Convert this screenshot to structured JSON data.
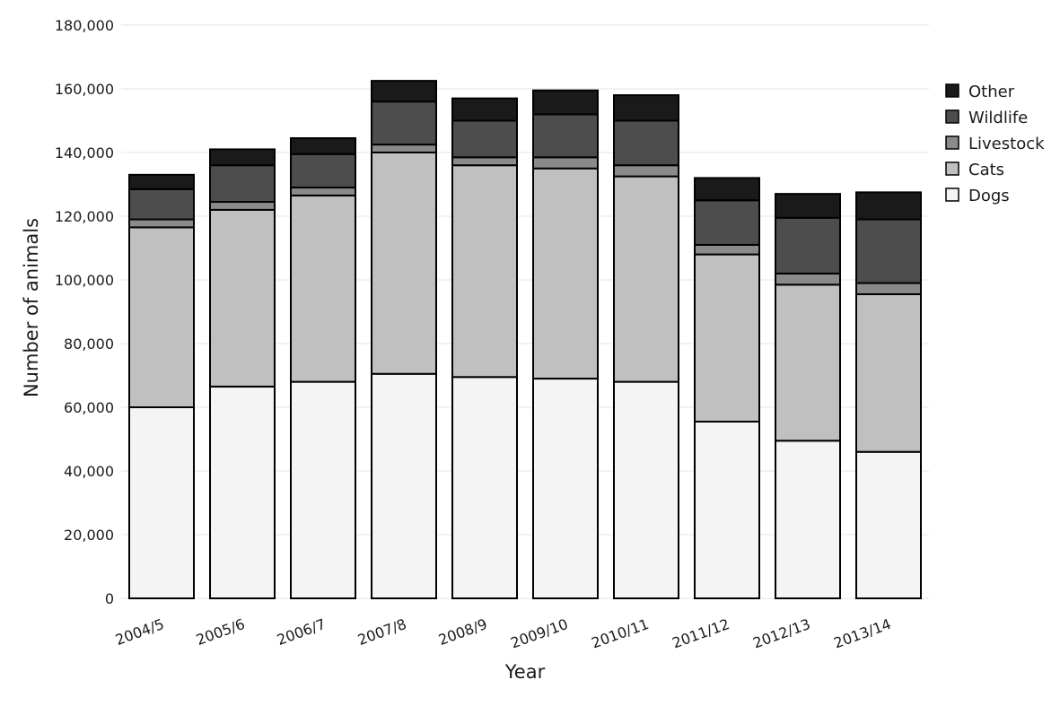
{
  "chart_data": {
    "type": "bar",
    "stacked": true,
    "title": "",
    "xlabel": "Year",
    "ylabel": "Number of animals",
    "ylim": [
      0,
      180000
    ],
    "yticks": [
      0,
      20000,
      40000,
      60000,
      80000,
      100000,
      120000,
      140000,
      160000,
      180000
    ],
    "ytick_labels": [
      "0",
      "20,000",
      "40,000",
      "60,000",
      "80,000",
      "100,000",
      "120,000",
      "140,000",
      "160,000",
      "180,000"
    ],
    "grid": true,
    "legend_position": "right",
    "categories": [
      "2004/5",
      "2005/6",
      "2006/7",
      "2007/8",
      "2008/9",
      "2009/10",
      "2010/11",
      "2011/12",
      "2012/13",
      "2013/14"
    ],
    "series": [
      {
        "name": "Dogs",
        "color": "#f4f4f4",
        "values": [
          60000,
          66500,
          68000,
          70500,
          69500,
          69000,
          68000,
          55500,
          49500,
          46000
        ]
      },
      {
        "name": "Cats",
        "color": "#c0c0c0",
        "values": [
          56500,
          55500,
          58500,
          69500,
          66500,
          66000,
          64500,
          52500,
          49000,
          49500
        ]
      },
      {
        "name": "Livestock",
        "color": "#8a8a8a",
        "values": [
          2500,
          2500,
          2500,
          2500,
          2500,
          3500,
          3500,
          3000,
          3500,
          3500
        ]
      },
      {
        "name": "Wildlife",
        "color": "#4d4d4d",
        "values": [
          9500,
          11500,
          10500,
          13500,
          11500,
          13500,
          14000,
          14000,
          17500,
          20000
        ]
      },
      {
        "name": "Other",
        "color": "#1a1a1a",
        "values": [
          4500,
          5000,
          5000,
          6500,
          7000,
          7500,
          8000,
          7000,
          7500,
          8500
        ]
      }
    ],
    "legend_order": [
      "Other",
      "Wildlife",
      "Livestock",
      "Cats",
      "Dogs"
    ]
  }
}
